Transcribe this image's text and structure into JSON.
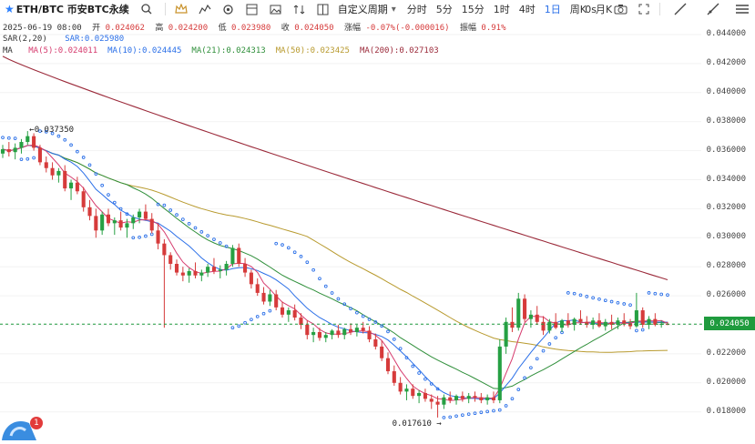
{
  "toolbar": {
    "symbol": "ETH/BTC 币安BTC永续",
    "custom_period": "自定义周期",
    "intervals": [
      "分时",
      "5分",
      "15分",
      "1时",
      "4时",
      "1日",
      "周K",
      "月K"
    ],
    "active_interval": "1日",
    "right_label": "0s"
  },
  "ohlc": {
    "date": "2025-06-19 08:00",
    "open_label": "开",
    "open": "0.024062",
    "high_label": "高",
    "high": "0.024200",
    "low_label": "低",
    "low": "0.023980",
    "close_label": "收",
    "close": "0.024050",
    "change_label": "涨幅",
    "change": "-0.07%(-0.000016)",
    "amp_label": "振幅",
    "amp": "0.91%"
  },
  "sar": {
    "label": "SAR(2,20)",
    "value": "SAR:0.025980"
  },
  "ma": {
    "label": "MA",
    "items": [
      {
        "text": "MA(5):0.024011",
        "color": "#d63b6e"
      },
      {
        "text": "MA(10):0.024445",
        "color": "#2a6fe8"
      },
      {
        "text": "MA(21):0.024313",
        "color": "#2f8f3a"
      },
      {
        "text": "MA(50):0.023425",
        "color": "#b89a2e"
      },
      {
        "text": "MA(200):0.027103",
        "color": "#9b2a3a"
      }
    ]
  },
  "y_axis": {
    "ticks": [
      "0.044000",
      "0.042000",
      "0.040000",
      "0.038000",
      "0.036000",
      "0.034000",
      "0.032000",
      "0.030000",
      "0.028000",
      "0.026000",
      "0.024000",
      "0.022000",
      "0.020000",
      "0.018000"
    ],
    "current_price": "0.024050"
  },
  "annotations": {
    "high": "0.037350",
    "low": "0.017610"
  },
  "notification": {
    "count": "1"
  },
  "colors": {
    "up": "#26a043",
    "down": "#d63b3b",
    "sar": "#2a6fe8",
    "accent": "#2a6fe8"
  },
  "chart_data": {
    "type": "candlestick",
    "ylim": [
      0.0175,
      0.045
    ],
    "candles": [
      [
        0.0358,
        0.0364,
        0.0355,
        0.0361
      ],
      [
        0.0361,
        0.0366,
        0.0356,
        0.0359
      ],
      [
        0.0359,
        0.0365,
        0.0354,
        0.0362
      ],
      [
        0.0362,
        0.0368,
        0.0358,
        0.0366
      ],
      [
        0.0366,
        0.03735,
        0.0364,
        0.037
      ],
      [
        0.037,
        0.0372,
        0.036,
        0.0362
      ],
      [
        0.0362,
        0.0364,
        0.035,
        0.0352
      ],
      [
        0.0352,
        0.0356,
        0.0345,
        0.0348
      ],
      [
        0.0348,
        0.0352,
        0.034,
        0.0343
      ],
      [
        0.0343,
        0.0348,
        0.0338,
        0.0346
      ],
      [
        0.0346,
        0.035,
        0.0332,
        0.0334
      ],
      [
        0.0334,
        0.034,
        0.0326,
        0.0338
      ],
      [
        0.0338,
        0.0342,
        0.033,
        0.0332
      ],
      [
        0.0332,
        0.0335,
        0.0318,
        0.0321
      ],
      [
        0.0321,
        0.0326,
        0.0312,
        0.0315
      ],
      [
        0.0315,
        0.032,
        0.03,
        0.0305
      ],
      [
        0.0305,
        0.0318,
        0.0302,
        0.0316
      ],
      [
        0.0316,
        0.032,
        0.0308,
        0.031
      ],
      [
        0.031,
        0.0314,
        0.0302,
        0.0312
      ],
      [
        0.0312,
        0.0318,
        0.0305,
        0.0307
      ],
      [
        0.0307,
        0.0313,
        0.03,
        0.031
      ],
      [
        0.031,
        0.0316,
        0.0306,
        0.0314
      ],
      [
        0.0314,
        0.032,
        0.031,
        0.0318
      ],
      [
        0.0318,
        0.0323,
        0.0312,
        0.0313
      ],
      [
        0.0313,
        0.0317,
        0.0303,
        0.0305
      ],
      [
        0.0305,
        0.031,
        0.0292,
        0.0296
      ],
      [
        0.0296,
        0.0299,
        0.0238,
        0.0288
      ],
      [
        0.0288,
        0.029,
        0.0278,
        0.0282
      ],
      [
        0.0282,
        0.0285,
        0.0274,
        0.0276
      ],
      [
        0.0276,
        0.028,
        0.027,
        0.0274
      ],
      [
        0.0274,
        0.0279,
        0.0269,
        0.0277
      ],
      [
        0.0277,
        0.0283,
        0.0272,
        0.0274
      ],
      [
        0.0274,
        0.0278,
        0.027,
        0.0276
      ],
      [
        0.0276,
        0.0282,
        0.0273,
        0.028
      ],
      [
        0.028,
        0.0286,
        0.0275,
        0.0277
      ],
      [
        0.0277,
        0.0281,
        0.0272,
        0.0278
      ],
      [
        0.0278,
        0.0284,
        0.0274,
        0.0282
      ],
      [
        0.0282,
        0.0295,
        0.028,
        0.0293
      ],
      [
        0.0293,
        0.0296,
        0.028,
        0.0282
      ],
      [
        0.0282,
        0.0286,
        0.0273,
        0.0276
      ],
      [
        0.0276,
        0.0278,
        0.0265,
        0.0268
      ],
      [
        0.0268,
        0.0272,
        0.026,
        0.0262
      ],
      [
        0.0262,
        0.0266,
        0.0254,
        0.0256
      ],
      [
        0.0256,
        0.0264,
        0.0253,
        0.0261
      ],
      [
        0.0261,
        0.0264,
        0.025,
        0.0252
      ],
      [
        0.0252,
        0.0256,
        0.0245,
        0.0247
      ],
      [
        0.0247,
        0.0252,
        0.0242,
        0.025
      ],
      [
        0.025,
        0.0254,
        0.0243,
        0.0245
      ],
      [
        0.0245,
        0.0248,
        0.0237,
        0.024
      ],
      [
        0.024,
        0.0243,
        0.023,
        0.0233
      ],
      [
        0.0233,
        0.0238,
        0.0228,
        0.0235
      ],
      [
        0.0235,
        0.0238,
        0.0229,
        0.0231
      ],
      [
        0.0231,
        0.0235,
        0.0228,
        0.0233
      ],
      [
        0.0233,
        0.0237,
        0.023,
        0.0236
      ],
      [
        0.0236,
        0.024,
        0.0231,
        0.0233
      ],
      [
        0.0233,
        0.0238,
        0.023,
        0.0237
      ],
      [
        0.0237,
        0.0241,
        0.0233,
        0.0235
      ],
      [
        0.0235,
        0.024,
        0.0232,
        0.0238
      ],
      [
        0.0238,
        0.0242,
        0.0234,
        0.0236
      ],
      [
        0.0236,
        0.0239,
        0.0228,
        0.023
      ],
      [
        0.023,
        0.0234,
        0.0223,
        0.0225
      ],
      [
        0.0225,
        0.0229,
        0.0215,
        0.0217
      ],
      [
        0.0217,
        0.0221,
        0.0206,
        0.0208
      ],
      [
        0.0208,
        0.0212,
        0.0198,
        0.02
      ],
      [
        0.02,
        0.0204,
        0.0192,
        0.0194
      ],
      [
        0.0194,
        0.0199,
        0.0188,
        0.0196
      ],
      [
        0.0196,
        0.0199,
        0.0189,
        0.0191
      ],
      [
        0.0191,
        0.0195,
        0.0186,
        0.0193
      ],
      [
        0.0193,
        0.0196,
        0.0187,
        0.0189
      ],
      [
        0.0189,
        0.0192,
        0.0182,
        0.0187
      ],
      [
        0.0187,
        0.0191,
        0.01761,
        0.0185
      ],
      [
        0.0185,
        0.0192,
        0.0182,
        0.019
      ],
      [
        0.019,
        0.0194,
        0.0186,
        0.0188
      ],
      [
        0.0188,
        0.0192,
        0.0185,
        0.0191
      ],
      [
        0.0191,
        0.0194,
        0.0187,
        0.0189
      ],
      [
        0.0189,
        0.0193,
        0.0186,
        0.0191
      ],
      [
        0.0191,
        0.0194,
        0.0187,
        0.019
      ],
      [
        0.019,
        0.0193,
        0.0186,
        0.0188
      ],
      [
        0.0188,
        0.0192,
        0.0185,
        0.019
      ],
      [
        0.019,
        0.0194,
        0.0186,
        0.0188
      ],
      [
        0.0188,
        0.023,
        0.0186,
        0.0225
      ],
      [
        0.0225,
        0.0245,
        0.022,
        0.0242
      ],
      [
        0.0242,
        0.0252,
        0.0235,
        0.0238
      ],
      [
        0.0238,
        0.0262,
        0.0236,
        0.0258
      ],
      [
        0.0258,
        0.0261,
        0.0242,
        0.0244
      ],
      [
        0.0244,
        0.025,
        0.0238,
        0.0247
      ],
      [
        0.0247,
        0.0253,
        0.024,
        0.0242
      ],
      [
        0.0242,
        0.0246,
        0.0233,
        0.0236
      ],
      [
        0.0236,
        0.0244,
        0.0234,
        0.0242
      ],
      [
        0.0242,
        0.0248,
        0.0237,
        0.0238
      ],
      [
        0.0238,
        0.0244,
        0.0235,
        0.0243
      ],
      [
        0.0243,
        0.0248,
        0.0238,
        0.024
      ],
      [
        0.024,
        0.0245,
        0.0236,
        0.0244
      ],
      [
        0.0244,
        0.025,
        0.024,
        0.0242
      ],
      [
        0.0242,
        0.0246,
        0.0238,
        0.024
      ],
      [
        0.024,
        0.0245,
        0.0237,
        0.0243
      ],
      [
        0.0243,
        0.0248,
        0.0238,
        0.0239
      ],
      [
        0.0239,
        0.0244,
        0.0236,
        0.0242
      ],
      [
        0.0242,
        0.0247,
        0.0237,
        0.024
      ],
      [
        0.024,
        0.0245,
        0.0237,
        0.0243
      ],
      [
        0.0243,
        0.0248,
        0.0239,
        0.0241
      ],
      [
        0.0241,
        0.0244,
        0.0237,
        0.0239
      ],
      [
        0.0239,
        0.0262,
        0.0238,
        0.025
      ],
      [
        0.025,
        0.0252,
        0.0238,
        0.024
      ],
      [
        0.024,
        0.0246,
        0.0237,
        0.0244
      ],
      [
        0.0244,
        0.0248,
        0.0239,
        0.024
      ],
      [
        0.024,
        0.0243,
        0.0238,
        0.02406
      ],
      [
        0.02406,
        0.0242,
        0.02398,
        0.02405
      ]
    ]
  }
}
